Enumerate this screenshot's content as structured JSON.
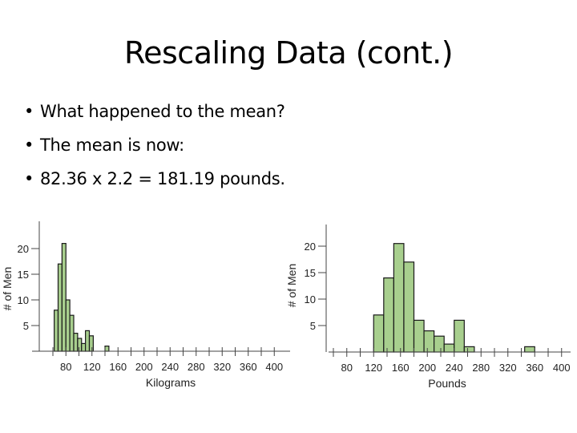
{
  "title": "Rescaling Data (cont.)",
  "bullets": [
    "What happened to the mean?",
    "The mean is now:",
    "82.36 x 2.2 = 181.19 pounds."
  ],
  "bullet_symbol": "•",
  "bar_fill": "#a8cf8e",
  "bar_stroke": "#1a1a1a",
  "chart_data": [
    {
      "type": "bar",
      "xlabel": "Kilograms",
      "ylabel": "# of Men",
      "x_ticks": [
        80,
        120,
        160,
        200,
        240,
        280,
        320,
        360,
        400
      ],
      "y_ticks": [
        5,
        10,
        15,
        20
      ],
      "bins": [
        {
          "from": 62,
          "to": 68,
          "value": 8
        },
        {
          "from": 68,
          "to": 74,
          "value": 17
        },
        {
          "from": 74,
          "to": 80,
          "value": 21
        },
        {
          "from": 80,
          "to": 86,
          "value": 10
        },
        {
          "from": 86,
          "to": 92,
          "value": 7
        },
        {
          "from": 92,
          "to": 98,
          "value": 3.5
        },
        {
          "from": 98,
          "to": 104,
          "value": 2.5
        },
        {
          "from": 104,
          "to": 110,
          "value": 1.5
        },
        {
          "from": 110,
          "to": 116,
          "value": 4
        },
        {
          "from": 116,
          "to": 122,
          "value": 3
        },
        {
          "from": 140,
          "to": 146,
          "value": 1
        }
      ]
    },
    {
      "type": "bar",
      "xlabel": "Pounds",
      "ylabel": "# of Men",
      "x_ticks": [
        80,
        120,
        160,
        200,
        240,
        280,
        320,
        360,
        400
      ],
      "y_ticks": [
        5,
        10,
        15,
        20
      ],
      "bins": [
        {
          "from": 120,
          "to": 135,
          "value": 7
        },
        {
          "from": 135,
          "to": 150,
          "value": 14
        },
        {
          "from": 150,
          "to": 165,
          "value": 20.5
        },
        {
          "from": 165,
          "to": 180,
          "value": 17
        },
        {
          "from": 180,
          "to": 195,
          "value": 6
        },
        {
          "from": 195,
          "to": 210,
          "value": 4
        },
        {
          "from": 210,
          "to": 225,
          "value": 3
        },
        {
          "from": 225,
          "to": 240,
          "value": 1.5
        },
        {
          "from": 240,
          "to": 255,
          "value": 6
        },
        {
          "from": 255,
          "to": 270,
          "value": 1
        },
        {
          "from": 345,
          "to": 360,
          "value": 1
        }
      ]
    }
  ]
}
